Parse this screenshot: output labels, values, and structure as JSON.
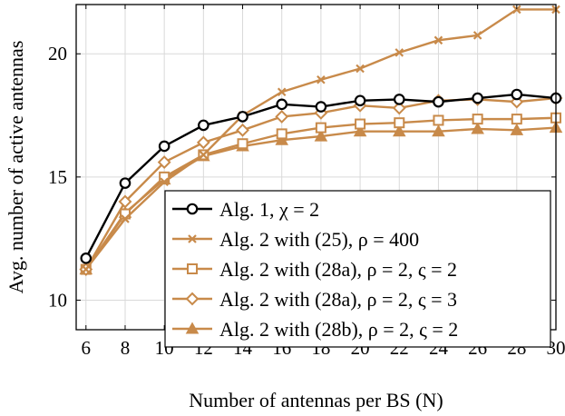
{
  "chart_data": {
    "type": "line",
    "xlabel": "Number of antennas per BS (N)",
    "ylabel": "Avg. number of active antennas",
    "xlim": [
      5.5,
      30
    ],
    "ylim": [
      8.8,
      22
    ],
    "xticks": [
      6,
      8,
      10,
      12,
      14,
      16,
      18,
      20,
      22,
      24,
      26,
      28,
      30
    ],
    "yticks": [
      10,
      15,
      20
    ],
    "grid": true,
    "legend_position": "bottom-right",
    "x": [
      6,
      8,
      10,
      12,
      14,
      16,
      18,
      20,
      22,
      24,
      26,
      28,
      30
    ],
    "series": [
      {
        "name": "Alg. 1, χ = 2",
        "marker": "circle",
        "color": "#000000",
        "values": [
          11.7,
          14.75,
          16.25,
          17.1,
          17.45,
          17.95,
          17.85,
          18.1,
          18.15,
          18.05,
          18.2,
          18.35,
          18.2
        ]
      },
      {
        "name": "Alg. 2 with (25), ρ = 400",
        "marker": "x",
        "color": "#c88a4a",
        "values": [
          11.25,
          13.3,
          14.8,
          15.9,
          17.5,
          18.45,
          18.95,
          19.4,
          20.05,
          20.55,
          20.75,
          21.8,
          21.8
        ]
      },
      {
        "name": "Alg. 2 with (28a), ρ = 2, ς = 2",
        "marker": "square",
        "color": "#c88a4a",
        "values": [
          11.25,
          13.5,
          15.0,
          15.9,
          16.35,
          16.75,
          17.0,
          17.15,
          17.2,
          17.3,
          17.35,
          17.35,
          17.4
        ]
      },
      {
        "name": "Alg. 2 with (28a), ρ = 2, ς = 3",
        "marker": "diamond",
        "color": "#c88a4a",
        "values": [
          11.25,
          14.0,
          15.6,
          16.4,
          16.9,
          17.45,
          17.6,
          17.9,
          17.8,
          18.1,
          18.15,
          18.05,
          18.2
        ]
      },
      {
        "name": "Alg. 2 with (28b), ρ = 2, ς = 2",
        "marker": "triangle",
        "color": "#c88a4a",
        "values": [
          11.25,
          13.55,
          14.9,
          15.85,
          16.25,
          16.5,
          16.65,
          16.85,
          16.85,
          16.85,
          16.95,
          16.9,
          17.0
        ]
      }
    ]
  }
}
